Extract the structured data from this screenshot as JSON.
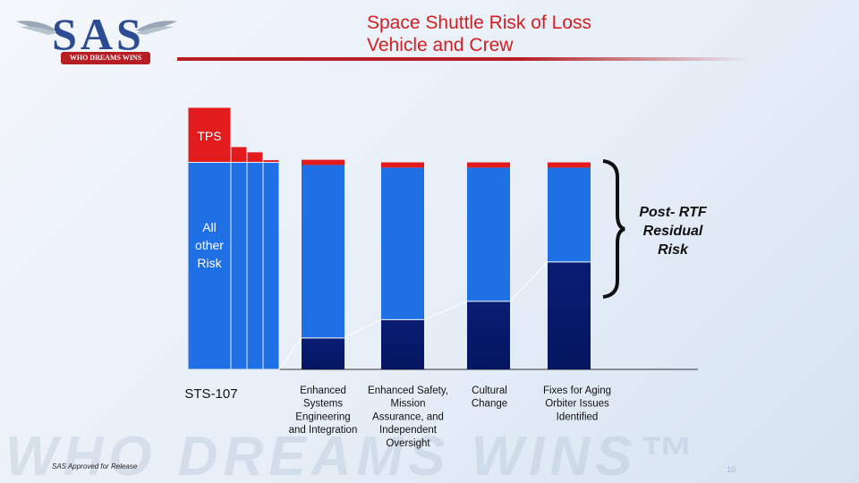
{
  "header": {
    "title_line1": "Space Shuttle Risk of Loss",
    "title_line2": "Vehicle and Crew"
  },
  "logo": {
    "letters": "SAS",
    "ribbon": "WHO DREAMS WINS"
  },
  "footer": {
    "approved": "SAS Approved for Release",
    "watermark": "WHO DREAMS WINS™",
    "page_number": "10"
  },
  "colors": {
    "title_red": "#d31e22",
    "tps_red": "#e21c1c",
    "other_risk_blue": "#1f6fe5",
    "residual_navy": "#051560",
    "brand_blue": "#2c4b93"
  },
  "chart_data": {
    "type": "bar",
    "stacked": true,
    "grid": false,
    "legend": "none",
    "ylim": [
      0,
      1
    ],
    "categories": [
      "STS-107",
      "Enhanced Systems Engineering and Integration",
      "Enhanced Safety, Mission Assurance, and Independent Oversight",
      "Cultural Change",
      "Fixes for Aging Orbiter Issues Identified"
    ],
    "tick_labels": [
      [
        "STS-107"
      ],
      [
        "Enhanced",
        "Systems",
        "Engineering",
        "and Integration"
      ],
      [
        "Enhanced Safety,",
        "Mission",
        "Assurance, and",
        "Independent",
        "Oversight"
      ],
      [
        "Cultural",
        "Change"
      ],
      [
        "Fixes for Aging",
        "Orbiter Issues",
        "Identified"
      ]
    ],
    "sts107_steps": [
      {
        "other_risk": 0.79,
        "tps": 0.21
      },
      {
        "other_risk": 0.79,
        "tps": 0.06
      },
      {
        "other_risk": 0.79,
        "tps": 0.04
      },
      {
        "other_risk": 0.79,
        "tps": 0.01
      }
    ],
    "series": [
      {
        "name": "TPS",
        "values": [
          0.21,
          0.02,
          0.02,
          0.02,
          0.02
        ]
      },
      {
        "name": "All other Risk",
        "values": [
          0.79,
          0.66,
          0.58,
          0.51,
          0.36
        ]
      },
      {
        "values": [
          0,
          0.12,
          0.19,
          0.26,
          0.41
        ]
      }
    ],
    "annotations": {
      "tps": "TPS",
      "other_risk": [
        "All",
        "other",
        "Risk"
      ],
      "residual": [
        "Post- RTF",
        "Residual",
        "Risk"
      ]
    }
  }
}
